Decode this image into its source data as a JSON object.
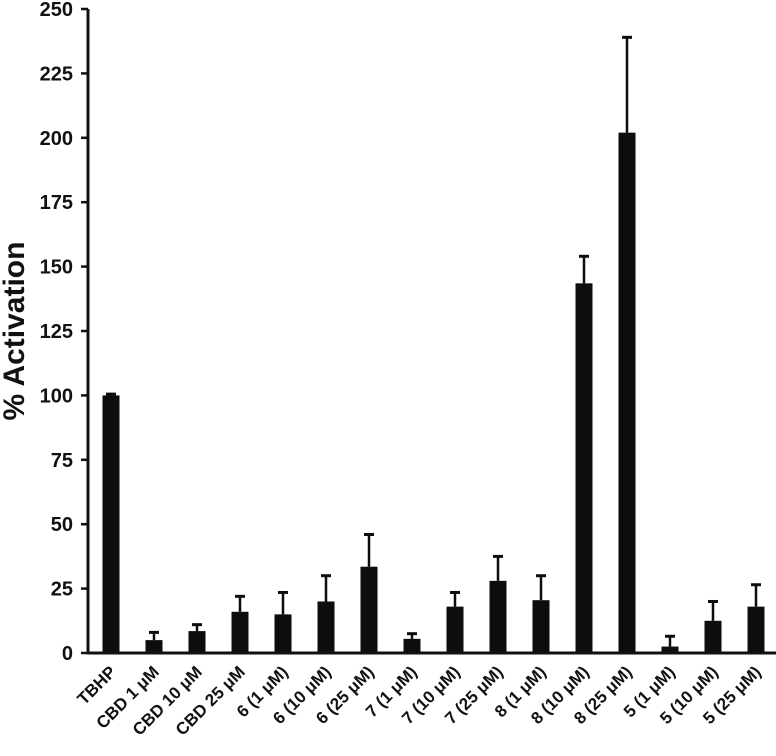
{
  "chart_data": {
    "type": "bar",
    "title": "",
    "xlabel": "",
    "ylabel": "% Activation",
    "ylim": [
      0,
      250
    ],
    "yticks": [
      0,
      25,
      50,
      75,
      100,
      125,
      150,
      175,
      200,
      225,
      250
    ],
    "grid": false,
    "legend": null,
    "categories": [
      "TBHP",
      "CBD 1 μM",
      "CBD 10 μM",
      "CBD 25 μM",
      "6  (1 μM)",
      "6  (10 μM)",
      "6  (25 μM)",
      "7  (1 μM)",
      "7  (10 μM)",
      "7  (25 μM)",
      "8  (1 μM)",
      "8  (10 μM)",
      "8  (25 μM)",
      "5  (1 μM)",
      "5  (10 μM)",
      "5  (25 μM)"
    ],
    "values": [
      100,
      5,
      8.5,
      16,
      15,
      20,
      33.5,
      5.5,
      18,
      28,
      20.5,
      143.5,
      202,
      2.5,
      12.5,
      18
    ],
    "error_upper": [
      0.5,
      3,
      2.5,
      6,
      8.5,
      10,
      12.5,
      2,
      5.5,
      9.5,
      9.5,
      10.5,
      37,
      4,
      7.5,
      8.5
    ],
    "bar_color": "#0d0d0d"
  }
}
